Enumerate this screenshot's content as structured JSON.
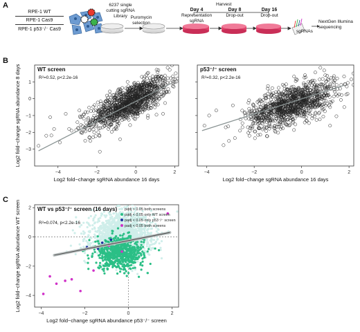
{
  "panel_a": {
    "letter": "A",
    "cell_lines": [
      "RPE-1 WT",
      "RPE-1 Cas9",
      "RPE-1 p53⁻/⁻ Cas9"
    ],
    "library_label": [
      "6237 single",
      "cutting sgRNA",
      "Library"
    ],
    "puromycin_label": [
      "Puromycin",
      "selection"
    ],
    "harvest_label": "Harvest",
    "days": [
      {
        "day": "Day 4",
        "desc": "Representation sgRNA"
      },
      {
        "day": "Day 8",
        "desc": "Drop-out"
      },
      {
        "day": "Day 16",
        "desc": "Drop-out"
      }
    ],
    "sgrnas_label": "sgRNAs",
    "sequencing_label": [
      "NextGen Illumina",
      "sequencing"
    ]
  },
  "chart_data": [
    {
      "panel": "B",
      "type": "scatter",
      "title": "WT screen",
      "annotation": "R²=0.52, p<2.2e-16",
      "xlabel": "Log2 fold−change sgRNA abundance 16 days",
      "ylabel": "Log2 fold−change sgRNA abundance 8 days",
      "xlim": [
        -5.2,
        2.2
      ],
      "ylim": [
        -4.0,
        2.0
      ],
      "xticks": [
        -4,
        -2,
        0,
        2
      ],
      "yticks": [
        -3,
        -2,
        -1,
        0,
        1
      ],
      "tick_labels_x": [
        "−4",
        "−2",
        "0",
        "2"
      ],
      "tick_labels_y": [
        "−3",
        "−2",
        "−1",
        "0",
        "1"
      ],
      "fit_line": {
        "x": [
          -5.0,
          1.8
        ],
        "y": [
          -3.1,
          0.9
        ]
      },
      "cloud": {
        "n": 1200,
        "cx": -0.3,
        "cy": -0.2,
        "sx": 1.0,
        "sy": 0.5,
        "slope": 0.55
      },
      "outliers": [
        [
          -5.0,
          -2.8
        ],
        [
          -4.6,
          -2.2
        ],
        [
          -4.2,
          -1.8
        ],
        [
          -3.9,
          -2.6
        ],
        [
          -3.6,
          -0.9
        ],
        [
          -3.3,
          -1.9
        ],
        [
          -3.0,
          -1.4
        ],
        [
          -2.9,
          -0.7
        ],
        [
          -2.6,
          -2.5
        ],
        [
          -2.4,
          -1.6
        ],
        [
          -4.4,
          -1.1
        ],
        [
          -2.2,
          -2.3
        ],
        [
          1.7,
          0.4
        ],
        [
          1.4,
          -0.9
        ],
        [
          0.9,
          1.1
        ]
      ]
    },
    {
      "panel": "B",
      "type": "scatter",
      "title": "p53⁻/⁻ screen",
      "annotation": "R²=0.32, p<2.2e-16",
      "xlabel": "Log2 fold−change sgRNA abundance 16 days",
      "ylabel": "",
      "xlim": [
        -4.4,
        2.2
      ],
      "ylim": [
        -4.0,
        2.0
      ],
      "xticks": [
        -4,
        -2,
        0,
        2
      ],
      "yticks": [
        -3,
        -2,
        -1,
        0,
        1
      ],
      "tick_labels_x": [
        "−4",
        "−2",
        "0",
        "2"
      ],
      "tick_labels_y": [],
      "fit_line": {
        "x": [
          -4.2,
          1.8
        ],
        "y": [
          -1.9,
          0.8
        ]
      },
      "cloud": {
        "n": 1100,
        "cx": -0.4,
        "cy": -0.3,
        "sx": 0.9,
        "sy": 0.55,
        "slope": 0.45
      },
      "outliers": [
        [
          -4.1,
          -1.6
        ],
        [
          -3.6,
          -0.7
        ],
        [
          -3.2,
          -1.7
        ],
        [
          -2.9,
          -0.4
        ],
        [
          -2.6,
          -1.9
        ],
        [
          -2.4,
          -0.8
        ],
        [
          -2.2,
          -2.2
        ],
        [
          -3.9,
          -1.0
        ],
        [
          1.8,
          -0.5
        ],
        [
          1.5,
          1.2
        ],
        [
          1.2,
          -1.6
        ]
      ]
    },
    {
      "panel": "C",
      "type": "scatter",
      "title": "WT vs p53⁻/⁻ screen (16 days)",
      "annotation": "R²=0.074, p<2.2e-16",
      "xlabel": "Log2 fold−change sgRNA abundance p53⁻/⁻ screen",
      "ylabel": "Log2 fold−change sgRNA abundance WT screen",
      "xlim": [
        -4.3,
        2.3
      ],
      "ylim": [
        -4.8,
        2.2
      ],
      "xticks": [
        -4,
        -2,
        0,
        2
      ],
      "yticks": [
        -4,
        -2,
        0,
        2
      ],
      "tick_labels_x": [
        "−4",
        "−2",
        "0",
        "2"
      ],
      "tick_labels_y": [
        "−4",
        "−2",
        "0",
        "2"
      ],
      "fit_line": {
        "x": [
          -3.4,
          1.9
        ],
        "y": [
          -1.25,
          0.3
        ]
      },
      "ref_lines": {
        "x": 0,
        "y": 0
      },
      "legend": [
        {
          "label": "padj > 0.05 both screens",
          "color": "#cfeeea"
        },
        {
          "label": "padj < 0.05 only WT screen",
          "color": "#2bbf86"
        },
        {
          "label": "padj < 0.05 only p53⁻/⁻ screen",
          "color": "#1f2f9e"
        },
        {
          "label": "padj < 0.05 both screens",
          "color": "#d030c8"
        }
      ],
      "legend_position": "top-right",
      "clouds": [
        {
          "color": "#cfeeea",
          "n": 1400,
          "cx": -0.3,
          "cy": 0.1,
          "sx": 0.7,
          "sy": 0.75
        },
        {
          "color": "#2bbf86",
          "n": 650,
          "cx": -0.4,
          "cy": -1.1,
          "sx": 0.55,
          "sy": 0.55
        }
      ],
      "p53_only": [
        [
          -1.9,
          -0.7
        ],
        [
          -1.4,
          -0.8
        ],
        [
          -1.2,
          -0.4
        ],
        [
          -0.8,
          -0.2
        ]
      ],
      "both": [
        [
          -3.9,
          -3.9
        ],
        [
          -3.6,
          -2.7
        ],
        [
          -3.3,
          -3.2
        ],
        [
          -2.9,
          -3.0
        ],
        [
          -2.6,
          -2.9
        ],
        [
          -2.2,
          -3.7
        ],
        [
          -1.6,
          -2.3
        ],
        [
          -0.9,
          -0.6
        ],
        [
          -0.3,
          -1.0
        ],
        [
          1.8,
          1.6
        ]
      ]
    }
  ]
}
